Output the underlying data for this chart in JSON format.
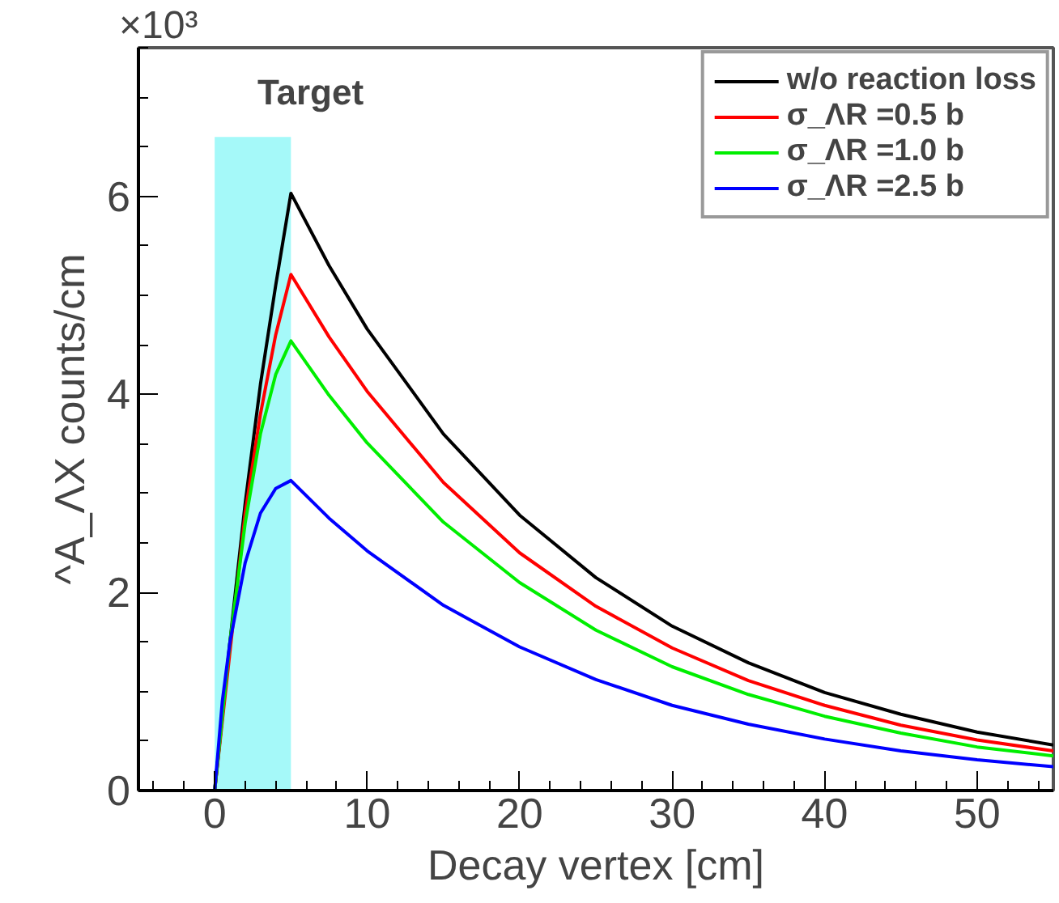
{
  "chart_data": {
    "type": "line",
    "xlabel": "Decay vertex [cm]",
    "ylabel": "^A_ΛX counts/cm",
    "xlim": [
      -5,
      55
    ],
    "ylim": [
      0,
      7.5
    ],
    "xticks": [
      0,
      10,
      20,
      30,
      40,
      50
    ],
    "yticks": [
      0,
      2,
      4,
      6
    ],
    "annotations": [
      "×10³",
      "Target"
    ],
    "legend": "top right",
    "grid": false,
    "line_style": "solid",
    "marker": "none",
    "series": [
      {
        "type": "area",
        "color": "#a5f9f9",
        "x": [
          0,
          5
        ],
        "values": [
          6.6,
          6.6
        ]
      },
      {
        "name": "w/o reaction loss",
        "color": "#000000",
        "x": [
          -5,
          0,
          1,
          2,
          3,
          4,
          5,
          7.5,
          10,
          15,
          20,
          25,
          30,
          35,
          40,
          45,
          50,
          55
        ],
        "values": [
          0,
          0,
          1.5,
          2.9,
          4.1,
          5.1,
          6.03,
          5.3,
          4.66,
          3.6,
          2.78,
          2.15,
          1.66,
          1.29,
          0.99,
          0.77,
          0.59,
          0.46
        ]
      },
      {
        "name": "σ_ΛR =0.5 b",
        "color": "#ff0000",
        "x": [
          0,
          2,
          3,
          4,
          5,
          7.5,
          10,
          15,
          20,
          25,
          30,
          35,
          40,
          45,
          50,
          55
        ],
        "values": [
          0,
          2.8,
          3.8,
          4.6,
          5.21,
          4.58,
          4.03,
          3.11,
          2.4,
          1.86,
          1.44,
          1.11,
          0.86,
          0.66,
          0.51,
          0.4
        ]
      },
      {
        "name": "σ_ΛR =1.0 b",
        "color": "#00ee00",
        "x": [
          0,
          1,
          2,
          3,
          4,
          5,
          7.5,
          10,
          15,
          20,
          25,
          30,
          35,
          40,
          45,
          50,
          55
        ],
        "values": [
          0,
          1.5,
          2.7,
          3.6,
          4.2,
          4.54,
          3.99,
          3.51,
          2.71,
          2.1,
          1.62,
          1.25,
          0.97,
          0.75,
          0.58,
          0.44,
          0.35
        ]
      },
      {
        "name": "σ_ΛR =2.5 b",
        "color": "#0000ff",
        "x": [
          0,
          0.5,
          1,
          2,
          3,
          4,
          5,
          7.5,
          10,
          15,
          20,
          25,
          30,
          35,
          40,
          45,
          50,
          55
        ],
        "values": [
          0,
          0.9,
          1.5,
          2.3,
          2.8,
          3.05,
          3.13,
          2.75,
          2.42,
          1.87,
          1.45,
          1.12,
          0.86,
          0.67,
          0.52,
          0.4,
          0.31,
          0.24
        ]
      }
    ]
  }
}
